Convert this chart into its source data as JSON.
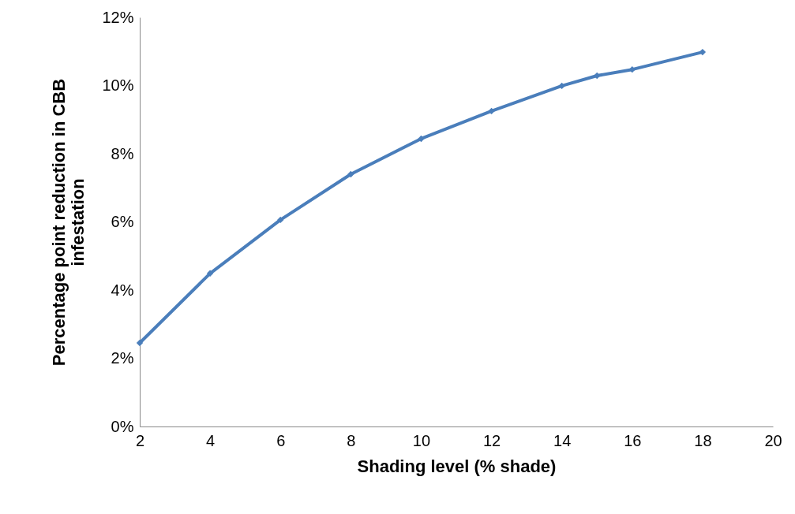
{
  "chart_data": {
    "type": "line",
    "xlabel": "Shading level (% shade)",
    "ylabel": "Percentage point reduction in CBB infestation",
    "x": [
      2,
      4,
      6,
      8,
      10,
      12,
      14,
      15,
      16,
      18
    ],
    "series": [
      {
        "color": "#4a7ebb",
        "values": [
          2.45,
          4.49,
          6.06,
          7.4,
          8.44,
          9.25,
          9.99,
          10.29,
          10.47,
          10.98
        ]
      }
    ],
    "xlim": [
      2,
      20
    ],
    "xticks": [
      2,
      4,
      6,
      8,
      10,
      12,
      14,
      16,
      18,
      20
    ],
    "ylim": [
      0,
      12
    ],
    "yticks": [
      {
        "value": 0,
        "label": "0%"
      },
      {
        "value": 2,
        "label": "2%"
      },
      {
        "value": 4,
        "label": "4%"
      },
      {
        "value": 6,
        "label": "6%"
      },
      {
        "value": 8,
        "label": "8%"
      },
      {
        "value": 10,
        "label": "10%"
      },
      {
        "value": 12,
        "label": "12%"
      }
    ],
    "grid": false,
    "marker": "diamond",
    "line_style": "solid"
  }
}
